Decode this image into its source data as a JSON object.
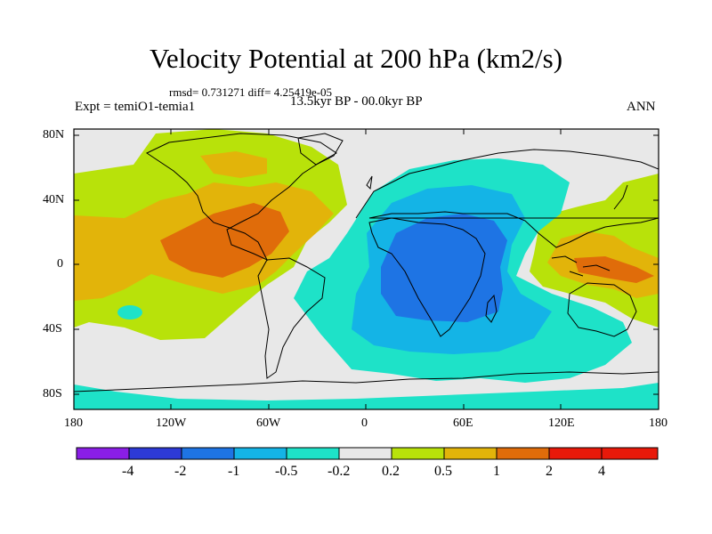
{
  "title": "Velocity Potential at 200 hPa (km2/s)",
  "stats_line": "rmsd= 0.731271 diff= 4.25419e-05",
  "experiment": "Expt = temiO1-temia1",
  "period": "13.5kyr BP - 00.0kyr BP",
  "season": "ANN",
  "lat_ticks": [
    "80N",
    "40N",
    "0",
    "40S",
    "80S"
  ],
  "lon_ticks": [
    "180",
    "120W",
    "60W",
    "0",
    "60E",
    "120E",
    "180"
  ],
  "colorbar": {
    "labels": [
      "-4",
      "-2",
      "-1",
      "-0.5",
      "-0.2",
      "0.2",
      "0.5",
      "1",
      "2",
      "4"
    ],
    "colors": [
      "#8a1ee6",
      "#2d3ad6",
      "#1e74e4",
      "#14b4e6",
      "#1ee2c8",
      "#e8e8e8",
      "#b8e20a",
      "#e2b40a",
      "#e06c0a",
      "#e8190a"
    ]
  },
  "field_colors": {
    "land_base": "#e8e8e8",
    "neg_weak": "#1ee2c8",
    "neg_mid": "#14b4e6",
    "neg_strong": "#1e74e4",
    "pos_weak": "#b8e20a",
    "pos_mid": "#e2b40a",
    "pos_strong": "#e06c0a"
  }
}
